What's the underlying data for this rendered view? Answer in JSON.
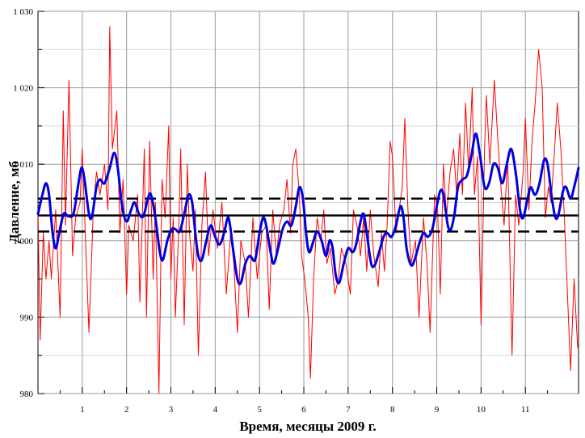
{
  "chart_data": {
    "type": "line",
    "xlabel": "Время, месяцы 2009 г.",
    "ylabel": "Давление, мб",
    "xlim": [
      0,
      12.2
    ],
    "ylim": [
      980,
      1030
    ],
    "x_ticks": [
      1,
      2,
      3,
      4,
      5,
      6,
      7,
      8,
      9,
      10,
      11
    ],
    "y_ticks": [
      980,
      990,
      1000,
      1010,
      1020,
      1030
    ],
    "y_tick_labels": [
      "980",
      "990",
      "1 000",
      "1 010",
      "1 020",
      "1 030"
    ],
    "grid": true,
    "colors": {
      "raw": "#ff0000",
      "smoothed": "#0000dd",
      "reference": "#000000"
    },
    "horizontal_lines": [
      {
        "y": 1003.3,
        "style": "solid"
      },
      {
        "y": 1005.5,
        "style": "dashed"
      },
      {
        "y": 1001.2,
        "style": "dashed"
      }
    ],
    "series": [
      {
        "style": "raw",
        "points": [
          [
            0.0,
            1004
          ],
          [
            0.05,
            987
          ],
          [
            0.12,
            1001
          ],
          [
            0.18,
            995
          ],
          [
            0.25,
            1000
          ],
          [
            0.3,
            995
          ],
          [
            0.4,
            1004
          ],
          [
            0.5,
            990
          ],
          [
            0.57,
            1017
          ],
          [
            0.62,
            1002
          ],
          [
            0.7,
            1021
          ],
          [
            0.78,
            998
          ],
          [
            0.85,
            1003
          ],
          [
            0.95,
            1005
          ],
          [
            1.0,
            1012
          ],
          [
            1.08,
            999
          ],
          [
            1.15,
            988
          ],
          [
            1.25,
            1004
          ],
          [
            1.32,
            1009
          ],
          [
            1.4,
            1006
          ],
          [
            1.5,
            1010
          ],
          [
            1.58,
            1004
          ],
          [
            1.62,
            1028
          ],
          [
            1.68,
            1012
          ],
          [
            1.78,
            1017
          ],
          [
            1.85,
            1001
          ],
          [
            1.92,
            1008
          ],
          [
            2.0,
            993
          ],
          [
            2.05,
            1002
          ],
          [
            2.15,
            1000
          ],
          [
            2.25,
            1006
          ],
          [
            2.3,
            992
          ],
          [
            2.4,
            1012
          ],
          [
            2.45,
            990
          ],
          [
            2.52,
            1013
          ],
          [
            2.6,
            995
          ],
          [
            2.65,
            1005
          ],
          [
            2.73,
            980
          ],
          [
            2.8,
            1008
          ],
          [
            2.87,
            1003
          ],
          [
            2.95,
            1015
          ],
          [
            3.0,
            995
          ],
          [
            3.05,
            1003
          ],
          [
            3.1,
            990
          ],
          [
            3.18,
            1002
          ],
          [
            3.22,
            1012
          ],
          [
            3.3,
            989
          ],
          [
            3.37,
            1010
          ],
          [
            3.42,
            1001
          ],
          [
            3.5,
            996
          ],
          [
            3.55,
            1004
          ],
          [
            3.62,
            985
          ],
          [
            3.7,
            1002
          ],
          [
            3.78,
            1009
          ],
          [
            3.85,
            998
          ],
          [
            3.95,
            1004
          ],
          [
            4.05,
            999
          ],
          [
            4.15,
            1005
          ],
          [
            4.25,
            993
          ],
          [
            4.35,
            1001
          ],
          [
            4.42,
            997
          ],
          [
            4.5,
            988
          ],
          [
            4.58,
            1000
          ],
          [
            4.68,
            997
          ],
          [
            4.75,
            990
          ],
          [
            4.85,
            1003
          ],
          [
            4.95,
            995
          ],
          [
            5.05,
            1001
          ],
          [
            5.15,
            1002
          ],
          [
            5.22,
            991
          ],
          [
            5.3,
            1004
          ],
          [
            5.38,
            998
          ],
          [
            5.45,
            1002
          ],
          [
            5.55,
            1004
          ],
          [
            5.62,
            1008
          ],
          [
            5.7,
            1001
          ],
          [
            5.75,
            1010
          ],
          [
            5.82,
            1012
          ],
          [
            5.9,
            1006
          ],
          [
            5.95,
            998
          ],
          [
            6.02,
            995
          ],
          [
            6.1,
            990
          ],
          [
            6.15,
            982
          ],
          [
            6.22,
            995
          ],
          [
            6.3,
            1003
          ],
          [
            6.38,
            1000
          ],
          [
            6.45,
            1004
          ],
          [
            6.52,
            997
          ],
          [
            6.6,
            999
          ],
          [
            6.7,
            993
          ],
          [
            6.78,
            995
          ],
          [
            6.85,
            999
          ],
          [
            6.95,
            997
          ],
          [
            7.05,
            993
          ],
          [
            7.12,
            1004
          ],
          [
            7.2,
            1002
          ],
          [
            7.28,
            998
          ],
          [
            7.35,
            1003
          ],
          [
            7.42,
            996
          ],
          [
            7.5,
            1004
          ],
          [
            7.58,
            998
          ],
          [
            7.68,
            994
          ],
          [
            7.75,
            1001
          ],
          [
            7.82,
            996
          ],
          [
            7.88,
            1002
          ],
          [
            7.95,
            1013
          ],
          [
            8.0,
            1011
          ],
          [
            8.08,
            1001
          ],
          [
            8.15,
            1004
          ],
          [
            8.22,
            1007
          ],
          [
            8.28,
            1016
          ],
          [
            8.35,
            1004
          ],
          [
            8.42,
            997
          ],
          [
            8.52,
            1000
          ],
          [
            8.6,
            990
          ],
          [
            8.7,
            1003
          ],
          [
            8.78,
            997
          ],
          [
            8.85,
            988
          ],
          [
            8.95,
            1006
          ],
          [
            9.02,
            1004
          ],
          [
            9.08,
            993
          ],
          [
            9.15,
            1010
          ],
          [
            9.22,
            1003
          ],
          [
            9.3,
            1009
          ],
          [
            9.38,
            1012
          ],
          [
            9.45,
            1006
          ],
          [
            9.52,
            1014
          ],
          [
            9.58,
            1006
          ],
          [
            9.65,
            1018
          ],
          [
            9.72,
            1009
          ],
          [
            9.8,
            1020
          ],
          [
            9.85,
            1006
          ],
          [
            9.92,
            1011
          ],
          [
            10.0,
            989
          ],
          [
            10.08,
            1012
          ],
          [
            10.12,
            1019
          ],
          [
            10.2,
            1010
          ],
          [
            10.3,
            1021
          ],
          [
            10.38,
            1013
          ],
          [
            10.45,
            1007
          ],
          [
            10.52,
            1002
          ],
          [
            10.6,
            1011
          ],
          [
            10.7,
            985
          ],
          [
            10.78,
            1006
          ],
          [
            10.85,
            1002
          ],
          [
            10.95,
            1009
          ],
          [
            11.0,
            1016
          ],
          [
            11.08,
            1004
          ],
          [
            11.15,
            1013
          ],
          [
            11.22,
            1018
          ],
          [
            11.3,
            1025
          ],
          [
            11.38,
            1020
          ],
          [
            11.45,
            1003
          ],
          [
            11.52,
            1007
          ],
          [
            11.58,
            1005
          ],
          [
            11.65,
            1011
          ],
          [
            11.72,
            1018
          ],
          [
            11.8,
            1012
          ],
          [
            11.88,
            1003
          ],
          [
            11.95,
            993
          ],
          [
            12.02,
            983
          ],
          [
            12.1,
            995
          ],
          [
            12.18,
            986
          ]
        ]
      },
      {
        "style": "smoothed",
        "points": [
          [
            0.0,
            1003.5
          ],
          [
            0.1,
            1006
          ],
          [
            0.18,
            1007.5
          ],
          [
            0.25,
            1006
          ],
          [
            0.33,
            1001
          ],
          [
            0.4,
            999
          ],
          [
            0.48,
            1001
          ],
          [
            0.58,
            1003.5
          ],
          [
            0.68,
            1003.2
          ],
          [
            0.8,
            1003.5
          ],
          [
            0.9,
            1007
          ],
          [
            0.98,
            1009.5
          ],
          [
            1.05,
            1008
          ],
          [
            1.15,
            1003.5
          ],
          [
            1.22,
            1003.2
          ],
          [
            1.32,
            1007
          ],
          [
            1.4,
            1008
          ],
          [
            1.5,
            1007.5
          ],
          [
            1.62,
            1009.5
          ],
          [
            1.72,
            1011.5
          ],
          [
            1.8,
            1009.5
          ],
          [
            1.9,
            1004.5
          ],
          [
            2.0,
            1002.5
          ],
          [
            2.1,
            1004
          ],
          [
            2.18,
            1005
          ],
          [
            2.28,
            1003.5
          ],
          [
            2.38,
            1003.2
          ],
          [
            2.48,
            1005.5
          ],
          [
            2.55,
            1006
          ],
          [
            2.65,
            1003
          ],
          [
            2.75,
            998.5
          ],
          [
            2.82,
            997.5
          ],
          [
            2.92,
            1000
          ],
          [
            3.02,
            1001.5
          ],
          [
            3.1,
            1001.5
          ],
          [
            3.2,
            1001.2
          ],
          [
            3.3,
            1003.5
          ],
          [
            3.4,
            1006
          ],
          [
            3.48,
            1005
          ],
          [
            3.55,
            1001
          ],
          [
            3.62,
            998
          ],
          [
            3.7,
            997.5
          ],
          [
            3.8,
            1000
          ],
          [
            3.9,
            1002
          ],
          [
            4.0,
            1000.5
          ],
          [
            4.1,
            999.5
          ],
          [
            4.2,
            1001
          ],
          [
            4.3,
            1003
          ],
          [
            4.4,
            999
          ],
          [
            4.5,
            995
          ],
          [
            4.58,
            994.5
          ],
          [
            4.68,
            997
          ],
          [
            4.78,
            998
          ],
          [
            4.9,
            997.5
          ],
          [
            5.0,
            1001
          ],
          [
            5.08,
            1003
          ],
          [
            5.15,
            1002
          ],
          [
            5.25,
            998.5
          ],
          [
            5.32,
            997
          ],
          [
            5.42,
            999
          ],
          [
            5.52,
            1001.5
          ],
          [
            5.62,
            1002.5
          ],
          [
            5.72,
            1002
          ],
          [
            5.82,
            1004.5
          ],
          [
            5.9,
            1007
          ],
          [
            5.98,
            1005.5
          ],
          [
            6.05,
            1001
          ],
          [
            6.12,
            998.5
          ],
          [
            6.22,
            1000
          ],
          [
            6.3,
            1001.2
          ],
          [
            6.4,
            1000
          ],
          [
            6.5,
            998
          ],
          [
            6.58,
            1000
          ],
          [
            6.65,
            999
          ],
          [
            6.72,
            995.5
          ],
          [
            6.8,
            994.5
          ],
          [
            6.9,
            997
          ],
          [
            7.0,
            999
          ],
          [
            7.1,
            998.5
          ],
          [
            7.18,
            999.5
          ],
          [
            7.28,
            1002.5
          ],
          [
            7.35,
            1003.5
          ],
          [
            7.42,
            1001
          ],
          [
            7.52,
            997
          ],
          [
            7.6,
            996.8
          ],
          [
            7.7,
            998.5
          ],
          [
            7.8,
            1000.5
          ],
          [
            7.88,
            1001
          ],
          [
            7.98,
            1000.5
          ],
          [
            8.08,
            1002
          ],
          [
            8.18,
            1004.5
          ],
          [
            8.25,
            1003
          ],
          [
            8.32,
            999
          ],
          [
            8.42,
            996.8
          ],
          [
            8.5,
            997.5
          ],
          [
            8.6,
            999.5
          ],
          [
            8.7,
            1001
          ],
          [
            8.8,
            1000.5
          ],
          [
            8.9,
            1001.5
          ],
          [
            9.0,
            1004.5
          ],
          [
            9.08,
            1006.5
          ],
          [
            9.15,
            1006
          ],
          [
            9.25,
            1002
          ],
          [
            9.32,
            1001.5
          ],
          [
            9.4,
            1003.5
          ],
          [
            9.48,
            1007
          ],
          [
            9.58,
            1008
          ],
          [
            9.68,
            1008.5
          ],
          [
            9.78,
            1011
          ],
          [
            9.88,
            1014
          ],
          [
            9.98,
            1011
          ],
          [
            10.08,
            1007
          ],
          [
            10.18,
            1007.5
          ],
          [
            10.28,
            1010
          ],
          [
            10.38,
            1009.5
          ],
          [
            10.48,
            1007.5
          ],
          [
            10.58,
            1010
          ],
          [
            10.68,
            1012
          ],
          [
            10.78,
            1009
          ],
          [
            10.88,
            1004
          ],
          [
            10.95,
            1003
          ],
          [
            11.05,
            1005.5
          ],
          [
            11.12,
            1007
          ],
          [
            11.22,
            1006
          ],
          [
            11.32,
            1007.5
          ],
          [
            11.42,
            1010.5
          ],
          [
            11.5,
            1010
          ],
          [
            11.6,
            1005.5
          ],
          [
            11.68,
            1003
          ],
          [
            11.75,
            1003.5
          ],
          [
            11.85,
            1006.5
          ],
          [
            11.92,
            1007
          ],
          [
            12.02,
            1005.5
          ],
          [
            12.1,
            1007
          ],
          [
            12.2,
            1009.5
          ]
        ]
      }
    ]
  }
}
